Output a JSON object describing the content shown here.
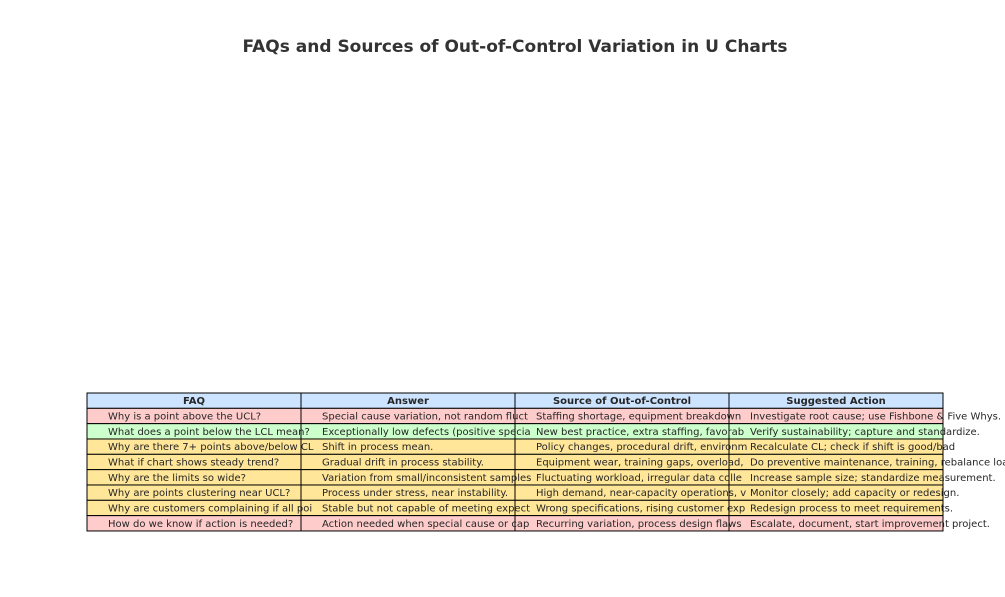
{
  "title": "FAQs and Sources of Out-of-Control Variation in U Charts",
  "table": {
    "header": {
      "cells": [
        "FAQ",
        "Answer",
        "Source of Out-of-Control",
        "Suggested Action"
      ],
      "color": "#cce4ff"
    },
    "rows": [
      {
        "cells": [
          "Why is a point above the UCL?",
          "Special cause variation, not random fluct",
          "Staffing shortage, equipment breakdown",
          "Investigate root cause; use Fishbone & Five Whys."
        ],
        "color": "#ffcccc"
      },
      {
        "cells": [
          "What does a point below the LCL mean?",
          "Exceptionally low defects (positive specia",
          "New best practice, extra staffing, favorab",
          "Verify sustainability; capture and standardize."
        ],
        "color": "#ccffcc"
      },
      {
        "cells": [
          "Why are there 7+ points above/below CL",
          "Shift in process mean.",
          "Policy changes, procedural drift, environm",
          "Recalculate CL; check if shift is good/bad"
        ],
        "color": "#ffe699"
      },
      {
        "cells": [
          "What if chart shows steady trend?",
          "Gradual drift in process stability.",
          "Equipment wear, training gaps, overload,",
          "Do preventive maintenance, training, rebalance load."
        ],
        "color": "#ffe699"
      },
      {
        "cells": [
          "Why are the limits so wide?",
          "Variation from small/inconsistent samples",
          "Fluctuating workload, irregular data colle",
          "Increase sample size; standardize measurement."
        ],
        "color": "#ffe699"
      },
      {
        "cells": [
          "Why are points clustering near UCL?",
          "Process under stress, near instability.",
          "High demand, near-capacity operations, v",
          "Monitor closely; add capacity or redesign."
        ],
        "color": "#ffe699"
      },
      {
        "cells": [
          "Why are customers complaining if all poi",
          "Stable but not capable of meeting expect",
          "Wrong specifications, rising customer exp",
          "Redesign process to meet requirements."
        ],
        "color": "#ffe699"
      },
      {
        "cells": [
          "How do we know if action is needed?",
          "Action needed when special cause or cap",
          "Recurring variation, process design flaws",
          "Escalate, document, start improvement project."
        ],
        "color": "#ffcccc"
      }
    ]
  }
}
